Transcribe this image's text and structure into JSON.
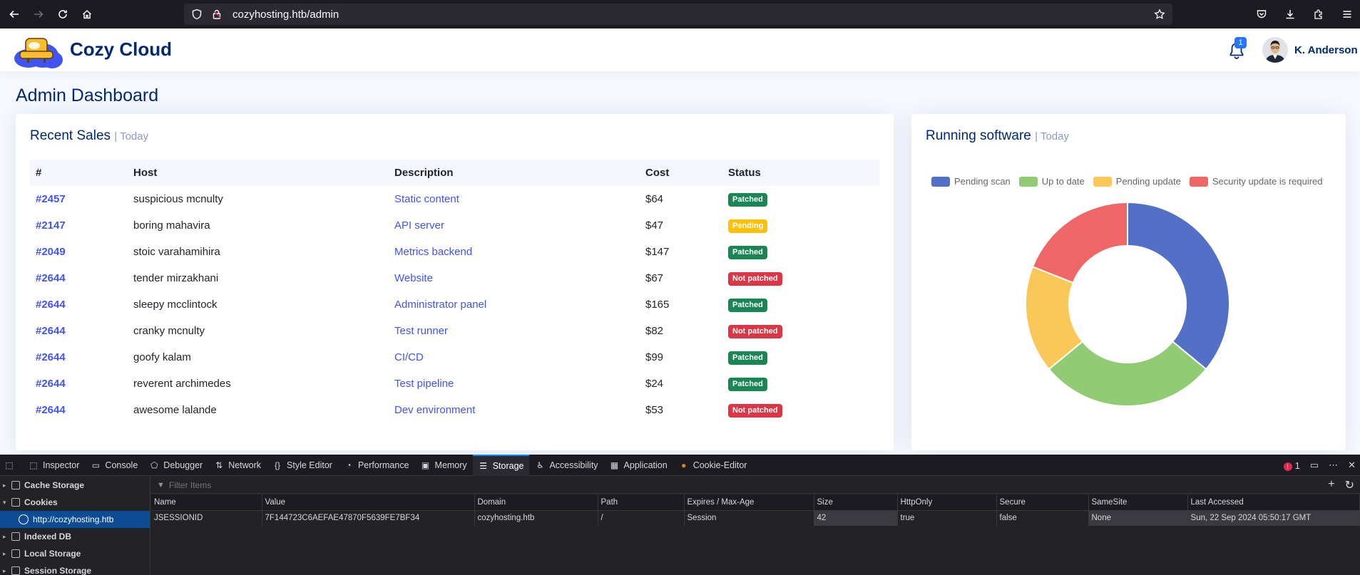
{
  "browser": {
    "url": "cozyhosting.htb/admin"
  },
  "header": {
    "brand": "Cozy Cloud",
    "notifications_count": "1",
    "user_name": "K. Anderson"
  },
  "page": {
    "title": "Admin Dashboard"
  },
  "sales": {
    "title": "Recent Sales",
    "subtitle": "| Today",
    "columns": [
      "#",
      "Host",
      "Description",
      "Cost",
      "Status"
    ],
    "rows": [
      {
        "id": "#2457",
        "host": "suspicious mcnulty",
        "desc": "Static content",
        "cost": "$64",
        "status": "Patched",
        "kind": "ok"
      },
      {
        "id": "#2147",
        "host": "boring mahavira",
        "desc": "API server",
        "cost": "$47",
        "status": "Pending",
        "kind": "pend"
      },
      {
        "id": "#2049",
        "host": "stoic varahamihira",
        "desc": "Metrics backend",
        "cost": "$147",
        "status": "Patched",
        "kind": "ok"
      },
      {
        "id": "#2644",
        "host": "tender mirzakhani",
        "desc": "Website",
        "cost": "$67",
        "status": "Not patched",
        "kind": "bad"
      },
      {
        "id": "#2644",
        "host": "sleepy mcclintock",
        "desc": "Administrator panel",
        "cost": "$165",
        "status": "Patched",
        "kind": "ok"
      },
      {
        "id": "#2644",
        "host": "cranky mcnulty",
        "desc": "Test runner",
        "cost": "$82",
        "status": "Not patched",
        "kind": "bad"
      },
      {
        "id": "#2644",
        "host": "goofy kalam",
        "desc": "CI/CD",
        "cost": "$99",
        "status": "Patched",
        "kind": "ok"
      },
      {
        "id": "#2644",
        "host": "reverent archimedes",
        "desc": "Test pipeline",
        "cost": "$24",
        "status": "Patched",
        "kind": "ok"
      },
      {
        "id": "#2644",
        "host": "awesome lalande",
        "desc": "Dev environment",
        "cost": "$53",
        "status": "Not patched",
        "kind": "bad"
      }
    ]
  },
  "software": {
    "title": "Running software",
    "subtitle": "| Today"
  },
  "chart_data": {
    "type": "pie",
    "variant": "doughnut",
    "title": "",
    "categories": [
      "Pending scan",
      "Up to date",
      "Pending update",
      "Security update is required"
    ],
    "values": [
      36,
      28,
      17,
      19
    ],
    "colors": [
      "#5470c6",
      "#91cc75",
      "#fac858",
      "#ee6666"
    ],
    "legend": "top"
  },
  "devtools": {
    "tabs": [
      {
        "label": "Inspector",
        "icon": "inspector-icon"
      },
      {
        "label": "Console",
        "icon": "console-icon"
      },
      {
        "label": "Debugger",
        "icon": "debugger-icon"
      },
      {
        "label": "Network",
        "icon": "network-icon"
      },
      {
        "label": "Style Editor",
        "icon": "style-editor-icon"
      },
      {
        "label": "Performance",
        "icon": "performance-icon"
      },
      {
        "label": "Memory",
        "icon": "memory-icon"
      },
      {
        "label": "Storage",
        "icon": "storage-icon"
      },
      {
        "label": "Accessibility",
        "icon": "accessibility-icon"
      },
      {
        "label": "Application",
        "icon": "application-icon"
      },
      {
        "label": "Cookie-Editor",
        "icon": "cookie-icon"
      }
    ],
    "active_tab": "Storage",
    "error_count": "1",
    "tree": {
      "cache_storage": "Cache Storage",
      "cookies": "Cookies",
      "cookie_host": "http://cozyhosting.htb",
      "indexed_db": "Indexed DB",
      "local_storage": "Local Storage",
      "session_storage": "Session Storage"
    },
    "filter_placeholder": "Filter Items",
    "cookie_columns": [
      "Name",
      "Value",
      "Domain",
      "Path",
      "Expires / Max-Age",
      "Size",
      "HttpOnly",
      "Secure",
      "SameSite",
      "Last Accessed"
    ],
    "cookie_rows": [
      [
        "JSESSIONID",
        "7F144723C6AEFAE47870F5639FE7BF34",
        "cozyhosting.htb",
        "/",
        "Session",
        "42",
        "true",
        "false",
        "None",
        "Sun, 22 Sep 2024 05:50:17 GMT"
      ]
    ]
  }
}
